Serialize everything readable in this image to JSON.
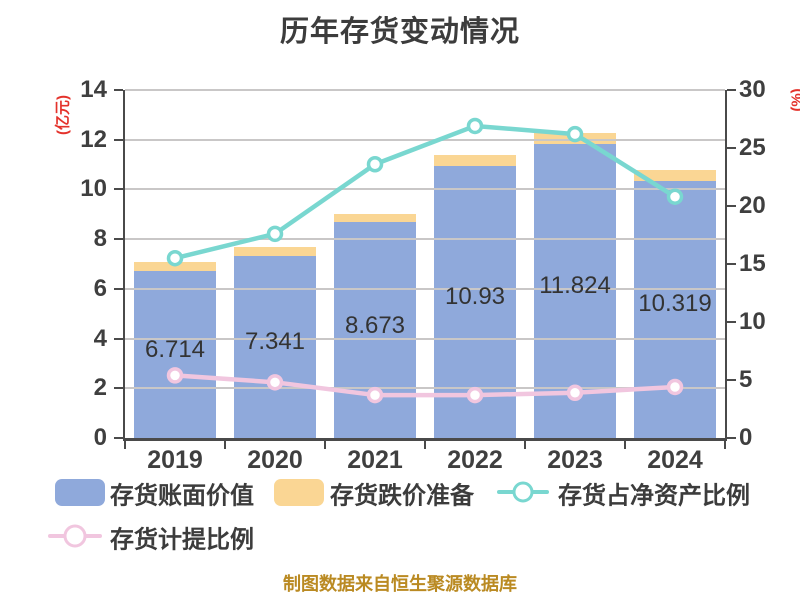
{
  "title": "历年存货变动情况",
  "caption": "制图数据来自恒生聚源数据库",
  "axes": {
    "left": {
      "name": "(亿元)",
      "ticks": [
        0,
        2,
        4,
        6,
        8,
        10,
        12,
        14
      ],
      "max": 14
    },
    "right": {
      "name": "(%)",
      "ticks": [
        0,
        5,
        10,
        15,
        20,
        25,
        30
      ],
      "max": 30
    }
  },
  "legend": {
    "items": [
      {
        "label": "存货账面价值",
        "swatch": "bar",
        "color": "#8fa9db"
      },
      {
        "label": "存货跌价准备",
        "swatch": "bar",
        "color": "#fad694"
      },
      {
        "label": "存货占净资产比例",
        "swatch": "line",
        "color": "#79d7d0"
      },
      {
        "label": "存货计提比例",
        "swatch": "line",
        "color": "#f1c6df"
      }
    ]
  },
  "chart_data": {
    "type": "bar",
    "subtype": "stacked-bar-with-lines",
    "categories": [
      "2019",
      "2020",
      "2021",
      "2022",
      "2023",
      "2024"
    ],
    "series": [
      {
        "name": "存货账面价值",
        "type": "bar",
        "stack": "inventory",
        "yaxis": "left",
        "color": "#8fa9db",
        "values": [
          6.714,
          7.341,
          8.673,
          10.93,
          11.824,
          10.319
        ],
        "data_labels": [
          "6.714",
          "7.341",
          "8.673",
          "10.93",
          "11.824",
          "10.319"
        ]
      },
      {
        "name": "存货跌价准备",
        "type": "bar",
        "stack": "inventory",
        "yaxis": "left",
        "color": "#fad694",
        "values": [
          0.36,
          0.35,
          0.34,
          0.45,
          0.44,
          0.48
        ]
      },
      {
        "name": "存货占净资产比例",
        "type": "line",
        "yaxis": "right",
        "color": "#79d7d0",
        "marker": "circle-white-fill",
        "values": [
          15.5,
          17.6,
          23.6,
          26.9,
          26.2,
          20.8
        ]
      },
      {
        "name": "存货计提比例",
        "type": "line",
        "yaxis": "right",
        "color": "#f1c6df",
        "marker": "circle-white-fill",
        "values": [
          5.4,
          4.8,
          3.7,
          3.7,
          3.9,
          4.4
        ]
      }
    ],
    "title": "历年存货变动情况",
    "xlabel": "",
    "ylabel_left": "(亿元)",
    "ylabel_right": "(%)",
    "ylim_left": [
      0,
      14
    ],
    "ylim_right": [
      0,
      30
    ],
    "grid": "horizontal",
    "legend_position": "bottom"
  },
  "colors": {
    "title_text": "#3c3c3c",
    "axis_text": "#3f3f3f",
    "axis_line": "#4a4a4a",
    "grid_line": "#c9c7c7",
    "axis_name_red": "#e4322b",
    "caption_gold": "#ba8a22",
    "bar_book_value": "#8fa9db",
    "bar_provision": "#fad694",
    "line_net_asset_ratio": "#79d7d0",
    "line_provision_ratio": "#f1c6df",
    "background": "#ffffff"
  }
}
